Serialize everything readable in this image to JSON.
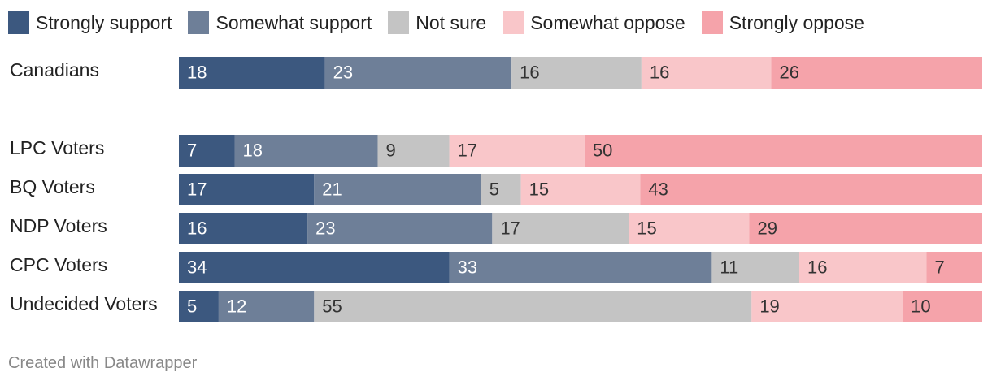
{
  "chart_data": {
    "type": "bar",
    "orientation": "horizontal",
    "stacked": true,
    "normalized": true,
    "categories": [
      "Canadians",
      "LPC Voters",
      "BQ Voters",
      "NDP Voters",
      "CPC Voters",
      "Undecided Voters"
    ],
    "series": [
      {
        "name": "Strongly support",
        "color": "#3c587f",
        "label_color": "#ffffff",
        "values": [
          18,
          7,
          17,
          16,
          34,
          5
        ]
      },
      {
        "name": "Somewhat support",
        "color": "#6e7f98",
        "label_color": "#ffffff",
        "values": [
          23,
          18,
          21,
          23,
          33,
          12
        ]
      },
      {
        "name": "Not sure",
        "color": "#c4c4c4",
        "label_color": "#333333",
        "values": [
          16,
          9,
          5,
          17,
          11,
          55
        ]
      },
      {
        "name": "Somewhat oppose",
        "color": "#f9c6c9",
        "label_color": "#333333",
        "values": [
          16,
          17,
          15,
          15,
          16,
          19
        ]
      },
      {
        "name": "Strongly oppose",
        "color": "#f5a3aa",
        "label_color": "#333333",
        "values": [
          26,
          50,
          43,
          29,
          7,
          10
        ]
      }
    ],
    "legend_position": "top-left",
    "grid": false
  },
  "footer": {
    "credit": "Created with Datawrapper"
  }
}
